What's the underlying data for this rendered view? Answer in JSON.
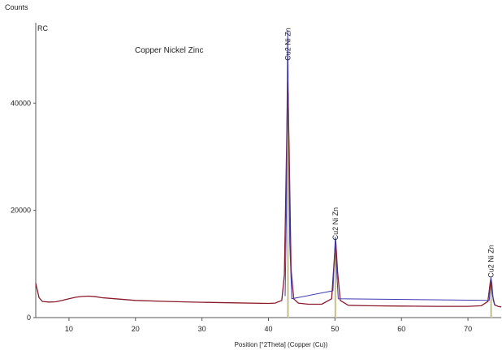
{
  "chart_data": {
    "type": "line",
    "ylabel": "Counts",
    "xlabel": "Position [°2Theta] (Copper (Cu))",
    "corner_label": "RC",
    "annotation": "Copper Nickel Zinc",
    "xlim": [
      5,
      75
    ],
    "ylim": [
      0,
      55000
    ],
    "x_ticks": [
      10,
      20,
      30,
      40,
      50,
      60,
      70
    ],
    "y_ticks": [
      0,
      20000,
      40000
    ],
    "series": [
      {
        "color": "#8b1a2b",
        "x": [
          5,
          5.5,
          6,
          7,
          8,
          9,
          10,
          11,
          12,
          13,
          14,
          15,
          17,
          20,
          25,
          30,
          35,
          40,
          41,
          42,
          42.4,
          42.7,
          42.9,
          43.1,
          43.4,
          43.8,
          44.5,
          46,
          48,
          49.5,
          49.8,
          50.1,
          50.4,
          50.8,
          52,
          55,
          60,
          65,
          70,
          72,
          73,
          73.4,
          73.7,
          74,
          74.5,
          75
        ],
        "y": [
          6400,
          3700,
          3000,
          2900,
          2950,
          3200,
          3500,
          3800,
          3950,
          4000,
          3900,
          3700,
          3500,
          3200,
          3000,
          2850,
          2750,
          2650,
          2700,
          3200,
          8000,
          30000,
          44000,
          32000,
          9000,
          3500,
          2700,
          2500,
          2500,
          3500,
          9000,
          14500,
          8500,
          3200,
          2300,
          2200,
          2150,
          2100,
          2100,
          2200,
          3000,
          7000,
          4200,
          2400,
          2100,
          2000
        ]
      },
      {
        "color": "#3a3ab0",
        "x": [
          42.5,
          42.7,
          42.8,
          42.9,
          43.0,
          43.2,
          43.5,
          49.7,
          49.95,
          50.05,
          50.2,
          50.5,
          73.2,
          73.45,
          73.6,
          73.8,
          74.1
        ],
        "y": [
          4000,
          20000,
          40000,
          53500,
          38000,
          14000,
          3500,
          5000,
          12000,
          15000,
          10000,
          3500,
          3200,
          7500,
          6500,
          3200,
          2200
        ]
      }
    ],
    "peaks": [
      {
        "label": "Cu2 Ni Zn",
        "x": 42.95,
        "height": 42000
      },
      {
        "label": "Cu2 Ni Zn",
        "x": 50.1,
        "height": 14000
      },
      {
        "label": "Cu2 Ni Zn",
        "x": 73.5,
        "height": 6500
      }
    ],
    "peak_label_y": [
      51000,
      17500,
      10500
    ]
  }
}
